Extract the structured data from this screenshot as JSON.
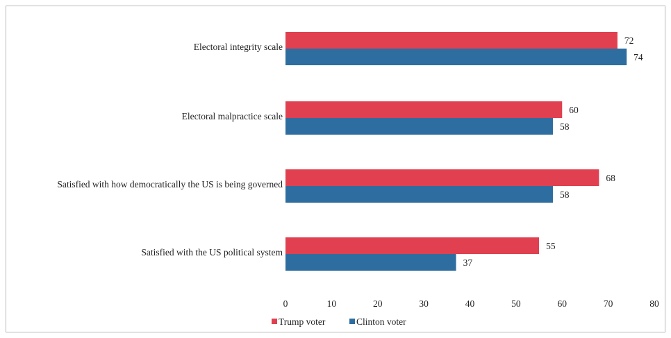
{
  "chart_data": {
    "type": "bar",
    "orientation": "horizontal",
    "categories": [
      "Electoral integrity scale",
      "Electoral malpractice scale",
      "Satisfied with how democratically the US is being governed",
      "Satisfied with the US political system"
    ],
    "series": [
      {
        "name": "Trump voter",
        "color": "#e0404f",
        "values": [
          72,
          60,
          68,
          55
        ]
      },
      {
        "name": "Clinton voter",
        "color": "#2e6da0",
        "values": [
          74,
          58,
          58,
          37
        ]
      }
    ],
    "xlim": [
      0,
      80
    ],
    "xticks": [
      "0",
      "10",
      "20",
      "30",
      "40",
      "50",
      "60",
      "70",
      "80"
    ],
    "grid": false,
    "legend": "bottom-center"
  }
}
